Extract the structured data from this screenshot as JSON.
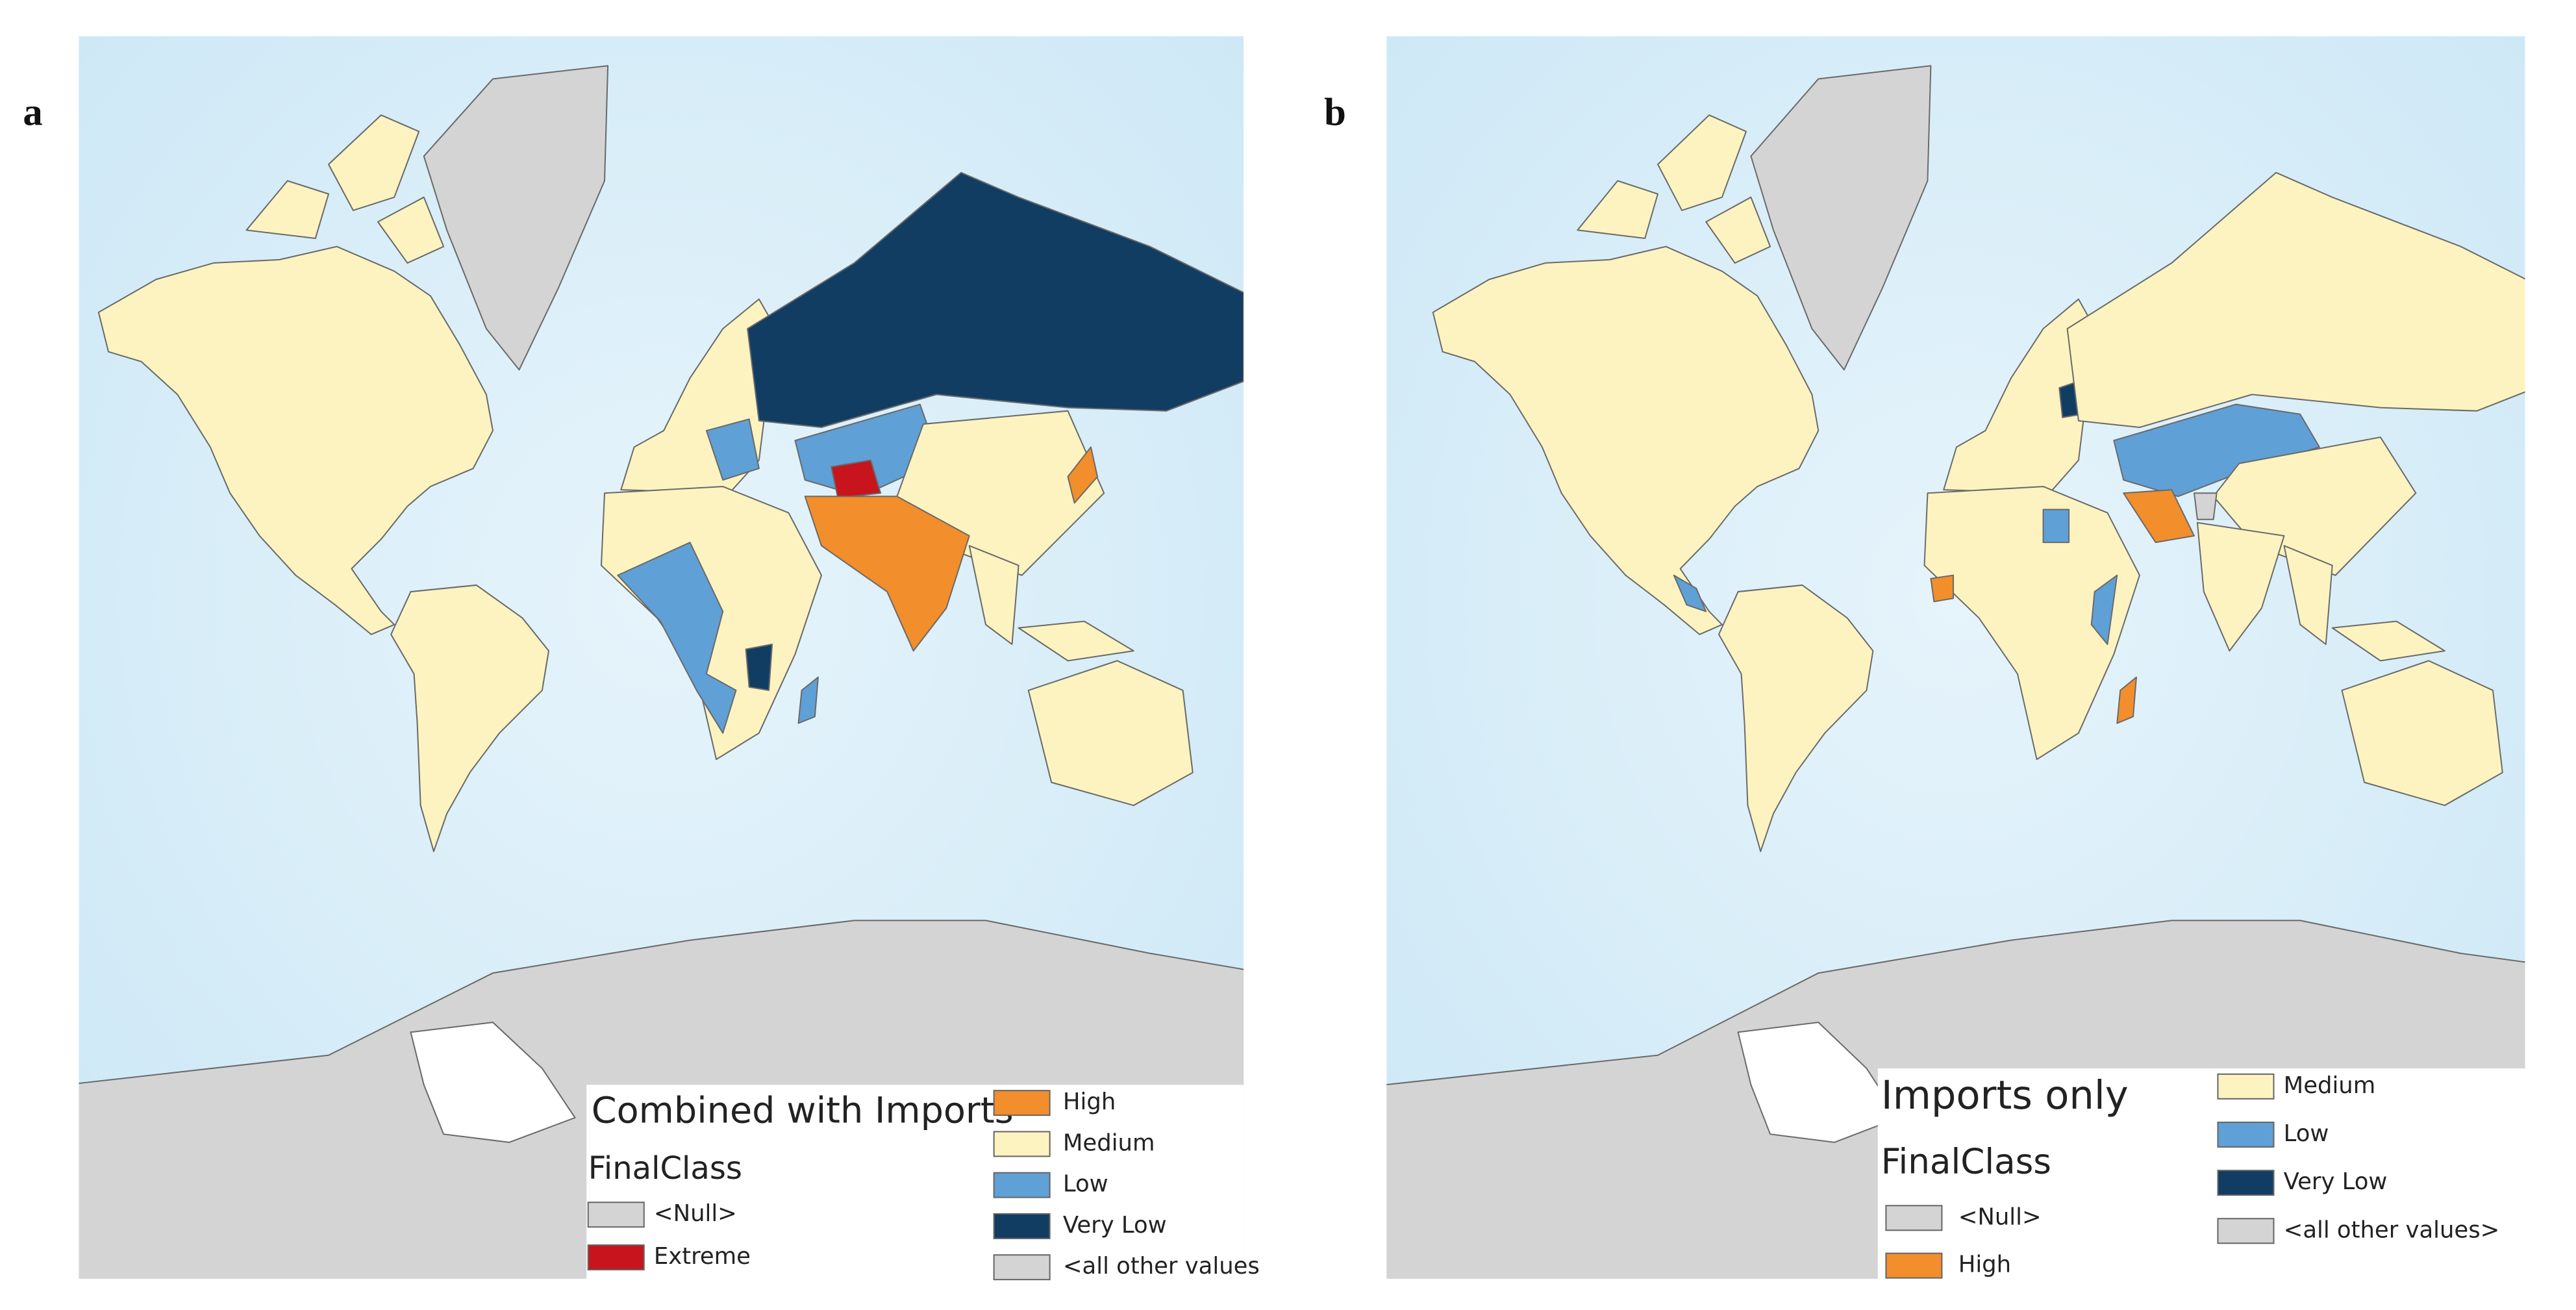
{
  "panels": [
    {
      "label": "a",
      "legend": {
        "title": "Combined with Imports",
        "field": "FinalClass",
        "items": [
          {
            "label": "<Null>",
            "color": "#d4d4d4"
          },
          {
            "label": "Extreme",
            "color": "#c8141d"
          },
          {
            "label": "High",
            "color": "#f28e2b"
          },
          {
            "label": "Medium",
            "color": "#fdf3c0"
          },
          {
            "label": "Low",
            "color": "#5fa0d6"
          },
          {
            "label": "Very Low",
            "color": "#123d63"
          },
          {
            "label": "<all other values",
            "color": "#d4d4d4"
          }
        ]
      }
    },
    {
      "label": "b",
      "legend": {
        "title": "Imports only",
        "field": "FinalClass",
        "items": [
          {
            "label": "<Null>",
            "color": "#d4d4d4"
          },
          {
            "label": "High",
            "color": "#f28e2b"
          },
          {
            "label": "Medium",
            "color": "#fdf3c0"
          },
          {
            "label": "Low",
            "color": "#5fa0d6"
          },
          {
            "label": "Very Low",
            "color": "#123d63"
          },
          {
            "label": "<all other values>",
            "color": "#d4d4d4"
          }
        ]
      }
    }
  ]
}
